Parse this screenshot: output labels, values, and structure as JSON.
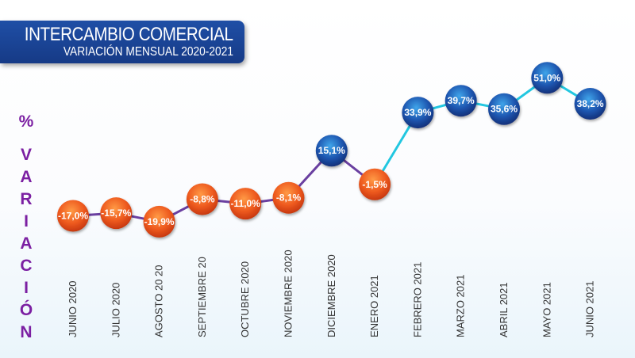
{
  "header": {
    "title": "INTERCAMBIO COMERCIAL",
    "subtitle": "VARIACIÓN MENSUAL 2020-2021"
  },
  "colors": {
    "title_bg": "#1f4fa6",
    "negative": "#e8501c",
    "positive": "#1e56b0",
    "line_2020": "#6a3fa0",
    "line_2021": "#22c7e0",
    "ylabel": "#7b1fa2"
  },
  "chart_data": {
    "type": "line",
    "title": "INTERCAMBIO COMERCIAL",
    "subtitle": "VARIACIÓN MENSUAL 2020-2021",
    "xlabel": "",
    "ylabel": "% VARIACIÓN",
    "ylabel_letters": [
      "%",
      "V",
      "A",
      "R",
      "I",
      "A",
      "C",
      "I",
      "Ó",
      "N"
    ],
    "grid": false,
    "ylim": [
      -25,
      55
    ],
    "categories": [
      "JUNIO 2020",
      "JULIO 2020",
      "AGOSTO 20 20",
      "SEPTIEMBRE 20",
      "OCTUBRE 2020",
      "NOVIEMBRE 2020",
      "DICIEMBRE 2020",
      "ENERO 2021",
      "FEBRERO 2021",
      "MARZO 2021",
      "ABRIL  2021",
      "MAYO 2021",
      "JUNIO 2021"
    ],
    "series": [
      {
        "name": "Variación mensual",
        "values": [
          -17.0,
          -15.7,
          -19.9,
          -8.8,
          -11.0,
          -8.1,
          15.1,
          -1.5,
          33.9,
          39.7,
          35.6,
          51.0,
          38.2
        ],
        "labels": [
          "-17,0%",
          "-15,7%",
          "-19,9%",
          "-8,8%",
          "-11,0%",
          "-8,1%",
          "15,1%",
          "-1,5%",
          "33,9%",
          "39,7%",
          "35,6%",
          "51,0%",
          "38,2%"
        ]
      }
    ]
  }
}
